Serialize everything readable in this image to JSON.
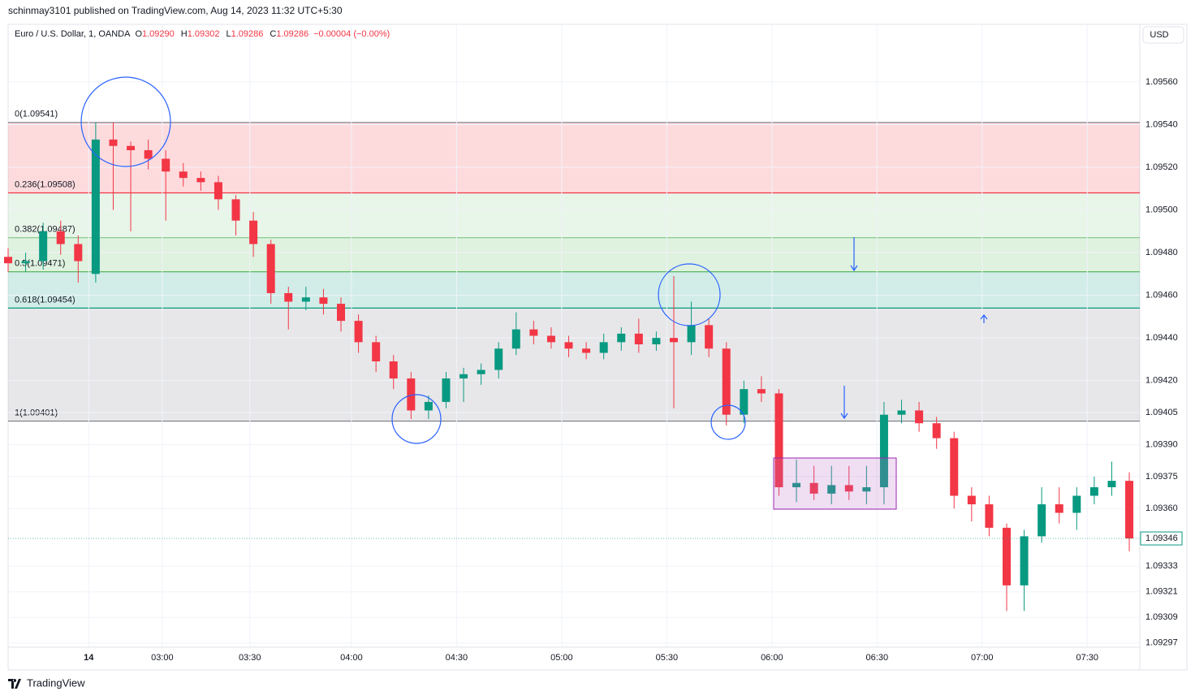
{
  "chart_data": {
    "type": "candlestick",
    "caption": "schinmay3101 published on TradingView.com, Aug 14, 2023 11:32 UTC+5:30",
    "title": "Euro / U.S. Dollar, 1, OANDA",
    "ohlc": [
      {
        "key": "O",
        "label": "1.09290"
      },
      {
        "key": "H",
        "label": "1.09302"
      },
      {
        "key": "L",
        "label": "1.09286"
      },
      {
        "key": "C",
        "label": "1.09286"
      }
    ],
    "change_label": "−0.00004 (−0.00%)",
    "currency": "USD",
    "brand": "TradingView",
    "up_color": "#089981",
    "down_color": "#f23645",
    "grid": true,
    "xlim": [
      0,
      323
    ],
    "ylim": [
      1.09295,
      1.09587
    ],
    "xticks": [
      {
        "value": 23,
        "label": "14"
      },
      {
        "value": 44,
        "label": "03:00"
      },
      {
        "value": 69,
        "label": "03:30"
      },
      {
        "value": 98,
        "label": "04:00"
      },
      {
        "value": 128,
        "label": "04:30"
      },
      {
        "value": 158,
        "label": "05:00"
      },
      {
        "value": 188,
        "label": "05:30"
      },
      {
        "value": 218,
        "label": "06:00"
      },
      {
        "value": 248,
        "label": "06:30"
      },
      {
        "value": 278,
        "label": "07:00"
      },
      {
        "value": 308,
        "label": "07:30"
      }
    ],
    "yticks": [
      {
        "value": 1.0956,
        "label": "1.09560"
      },
      {
        "value": 1.0954,
        "label": "1.09540"
      },
      {
        "value": 1.0952,
        "label": "1.09520"
      },
      {
        "value": 1.095,
        "label": "1.09500"
      },
      {
        "value": 1.0948,
        "label": "1.09480"
      },
      {
        "value": 1.0946,
        "label": "1.09460"
      },
      {
        "value": 1.0944,
        "label": "1.09440"
      },
      {
        "value": 1.0942,
        "label": "1.09420"
      },
      1.09405,
      {
        "value": 1.0939,
        "label": "1.09390"
      },
      1.09375,
      {
        "value": 1.0936,
        "label": "1.09360"
      },
      1.09333,
      1.09321,
      1.09309,
      1.09297
    ],
    "last_price": {
      "value": 1.09346,
      "label": "1.09346"
    },
    "fib_levels": [
      {
        "value": 1.09541,
        "label": "0(1.09541)",
        "color": "#787b86"
      },
      {
        "value": 1.09508,
        "label": "0.236(1.09508)",
        "color": "#f23645"
      },
      {
        "value": 1.09487,
        "label": "0.382(1.09487)",
        "color": "#81c784"
      },
      {
        "value": 1.09471,
        "label": "0.5(1.09471)",
        "color": "#4caf50"
      },
      {
        "value": 1.09454,
        "label": "0.618(1.09454)",
        "color": "#089981"
      },
      {
        "value": 1.09401,
        "label": "1(1.09401)",
        "color": "#787b86"
      }
    ],
    "x": [
      0,
      5,
      10,
      15,
      20,
      25,
      30,
      35,
      40,
      45,
      50,
      55,
      60,
      65,
      70,
      75,
      80,
      85,
      90,
      95,
      100,
      105,
      110,
      115,
      120,
      125,
      130,
      135,
      140,
      145,
      150,
      155,
      160,
      165,
      170,
      175,
      180,
      185,
      190,
      195,
      200,
      205,
      210,
      215,
      220,
      225,
      230,
      235,
      240,
      245,
      250,
      255,
      260,
      265,
      270,
      275,
      280,
      285,
      290,
      295,
      300,
      305,
      310,
      315,
      320
    ],
    "open": [
      1.09478,
      1.09475,
      1.09476,
      1.0949,
      1.09484,
      1.0947,
      1.09533,
      1.0953,
      1.09528,
      1.09524,
      1.09518,
      1.09515,
      1.09513,
      1.09505,
      1.09495,
      1.09484,
      1.09461,
      1.09457,
      1.09459,
      1.09456,
      1.09448,
      1.09438,
      1.09429,
      1.09421,
      1.09406,
      1.0941,
      1.09421,
      1.09423,
      1.09425,
      1.09435,
      1.09444,
      1.09441,
      1.09438,
      1.09435,
      1.09433,
      1.09438,
      1.09442,
      1.09437,
      1.0944,
      1.09438,
      1.09446,
      1.09435,
      1.09404,
      1.09416,
      1.09414,
      1.0937,
      1.09372,
      1.09367,
      1.09371,
      1.09368,
      1.0937,
      1.09404,
      1.09406,
      1.094,
      1.09393,
      1.09366,
      1.09362,
      1.09351,
      1.09324,
      1.09347,
      1.09362,
      1.09358,
      1.09366,
      1.0937,
      1.09373
    ],
    "high": [
      1.09482,
      1.0948,
      1.09494,
      1.09495,
      1.09488,
      1.09541,
      1.09541,
      1.09532,
      1.09533,
      1.09528,
      1.09522,
      1.09518,
      1.09516,
      1.09507,
      1.09499,
      1.09486,
      1.09464,
      1.09464,
      1.09463,
      1.09459,
      1.09451,
      1.09441,
      1.09432,
      1.09424,
      1.09413,
      1.09424,
      1.09426,
      1.09428,
      1.09438,
      1.09452,
      1.09448,
      1.09445,
      1.09441,
      1.09438,
      1.09442,
      1.09445,
      1.09449,
      1.09443,
      1.09469,
      1.09457,
      1.09449,
      1.09438,
      1.0942,
      1.09422,
      1.09416,
      1.09383,
      1.0938,
      1.0938,
      1.0938,
      1.0938,
      1.0941,
      1.09411,
      1.0941,
      1.09403,
      1.09396,
      1.0937,
      1.09366,
      1.09353,
      1.0935,
      1.0937,
      1.0937,
      1.0937,
      1.09375,
      1.09382,
      1.09377
    ],
    "low": [
      1.09471,
      1.09471,
      1.09472,
      1.09479,
      1.09466,
      1.09466,
      1.095,
      1.0949,
      1.09519,
      1.09495,
      1.09511,
      1.09509,
      1.095,
      1.09488,
      1.09478,
      1.09456,
      1.09444,
      1.09453,
      1.09451,
      1.09443,
      1.09433,
      1.09424,
      1.09416,
      1.09402,
      1.09402,
      1.09407,
      1.0941,
      1.09418,
      1.09421,
      1.09432,
      1.09437,
      1.09435,
      1.09431,
      1.0943,
      1.0943,
      1.09434,
      1.09433,
      1.09434,
      1.09407,
      1.09432,
      1.09431,
      1.09399,
      1.094,
      1.0941,
      1.09366,
      1.09363,
      1.09364,
      1.09362,
      1.09364,
      1.09362,
      1.09362,
      1.094,
      1.09396,
      1.09388,
      1.0936,
      1.09354,
      1.09347,
      1.09312,
      1.09312,
      1.09344,
      1.09353,
      1.0935,
      1.09362,
      1.09366,
      1.0934
    ],
    "close": [
      1.09475,
      1.09476,
      1.0949,
      1.09484,
      1.09476,
      1.09533,
      1.0953,
      1.09528,
      1.09524,
      1.09518,
      1.09515,
      1.09513,
      1.09505,
      1.09495,
      1.09484,
      1.09461,
      1.09457,
      1.09459,
      1.09456,
      1.09448,
      1.09438,
      1.09429,
      1.09421,
      1.09406,
      1.0941,
      1.09421,
      1.09423,
      1.09425,
      1.09435,
      1.09444,
      1.09441,
      1.09438,
      1.09435,
      1.09433,
      1.09438,
      1.09442,
      1.09437,
      1.0944,
      1.09438,
      1.09446,
      1.09435,
      1.09404,
      1.09416,
      1.09414,
      1.0937,
      1.09372,
      1.09367,
      1.09371,
      1.09368,
      1.0937,
      1.09404,
      1.09406,
      1.094,
      1.09393,
      1.09366,
      1.09362,
      1.09351,
      1.09324,
      1.09347,
      1.09362,
      1.09358,
      1.09366,
      1.0937,
      1.09373,
      1.09346
    ]
  }
}
